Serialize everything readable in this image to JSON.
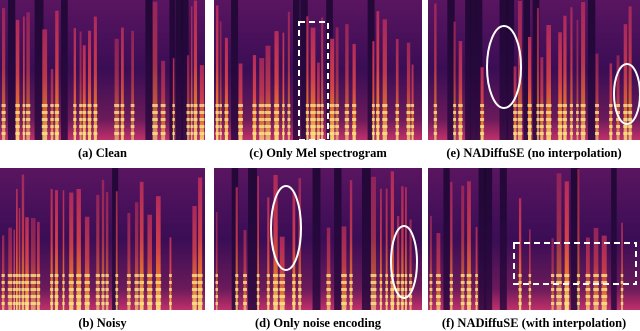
{
  "panels": [
    {
      "caption": "(a) Clean"
    },
    {
      "caption": "(c) Only Mel spectrogram"
    },
    {
      "caption": "(e)  NADiffuSE (no interpolation)"
    },
    {
      "caption": "(b) Noisy"
    },
    {
      "caption": "(d) Only noise encoding"
    },
    {
      "caption": "(f)  NADiffuSE (with interpolation)"
    }
  ]
}
